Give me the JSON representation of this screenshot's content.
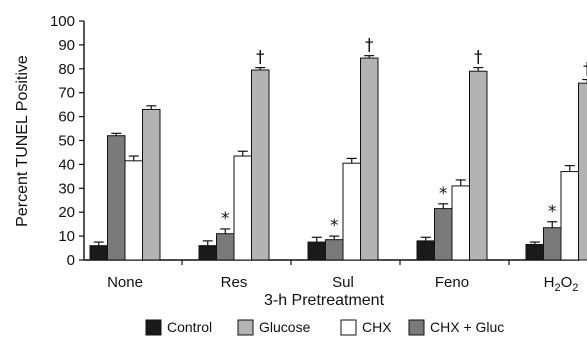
{
  "chart_data": {
    "type": "bar",
    "categories": [
      "None",
      "Res",
      "Sul",
      "Feno",
      "H2O2"
    ],
    "xlabel": "3-h Pretreatment",
    "ylabel": "Percent TUNEL Positive",
    "ylim": [
      0,
      100
    ],
    "yticks": [
      0,
      10,
      20,
      30,
      40,
      50,
      60,
      70,
      80,
      90,
      100
    ],
    "grid": false,
    "legend_position": "bottom",
    "bar_order": [
      "Control",
      "CHX + Gluc",
      "CHX",
      "Glucose"
    ],
    "series": [
      {
        "name": "Control",
        "color": "#1a1a1a",
        "values": [
          6,
          6,
          7.5,
          8,
          6.5
        ],
        "errors": [
          1.5,
          2,
          2,
          1.5,
          1
        ]
      },
      {
        "name": "Glucose",
        "color": "#b3b3b3",
        "values": [
          63,
          79.5,
          84.5,
          79,
          74
        ],
        "errors": [
          1.5,
          1,
          1,
          1.5,
          1.5
        ]
      },
      {
        "name": "CHX",
        "color": "#ffffff",
        "values": [
          41.5,
          43.5,
          40.5,
          31,
          37
        ],
        "errors": [
          2,
          2,
          2,
          2.5,
          2.5
        ]
      },
      {
        "name": "CHX + Gluc",
        "color": "#7a7a7a",
        "values": [
          52,
          11,
          8.5,
          21.5,
          13.5
        ],
        "errors": [
          1,
          2,
          1.5,
          2,
          2.5
        ]
      }
    ],
    "annotations": [
      {
        "category": "Res",
        "series": "CHX + Gluc",
        "text": "*"
      },
      {
        "category": "Sul",
        "series": "CHX + Gluc",
        "text": "*"
      },
      {
        "category": "Feno",
        "series": "CHX + Gluc",
        "text": "*"
      },
      {
        "category": "H2O2",
        "series": "CHX + Gluc",
        "text": "*"
      },
      {
        "category": "Res",
        "series": "Glucose",
        "text": "†"
      },
      {
        "category": "Sul",
        "series": "Glucose",
        "text": "†"
      },
      {
        "category": "Feno",
        "series": "Glucose",
        "text": "†"
      },
      {
        "category": "H2O2",
        "series": "Glucose",
        "text": "†"
      }
    ]
  }
}
